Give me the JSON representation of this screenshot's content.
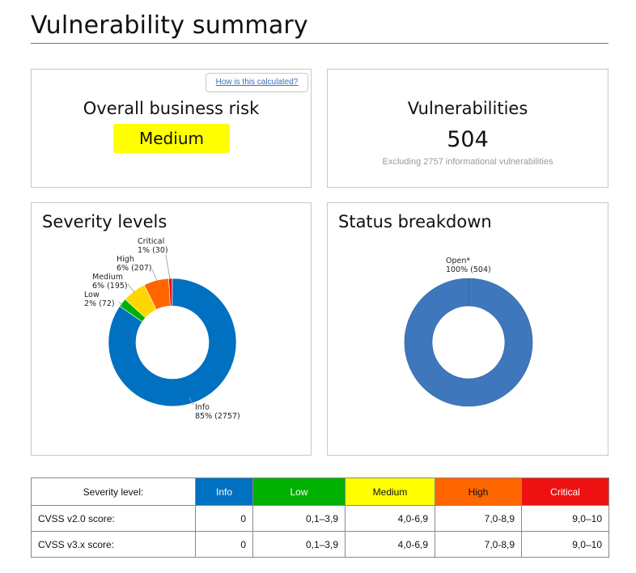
{
  "page": {
    "title": "Vulnerability summary"
  },
  "risk": {
    "heading": "Overall business risk",
    "level": "Medium",
    "link_label": "How is this calculated?",
    "badge_color": "#ffff00"
  },
  "vulnerabilities": {
    "heading": "Vulnerabilities",
    "count": "504",
    "note": "Excluding 2757 informational vulnerabilities"
  },
  "severity_chart": {
    "heading": "Severity levels"
  },
  "status_chart": {
    "heading": "Status breakdown"
  },
  "chart_data": [
    {
      "type": "pie",
      "donut": true,
      "title": "Severity levels",
      "slices": [
        {
          "name": "Info",
          "value": 2757,
          "label_pct": "85%",
          "label_count": "(2757)",
          "color": "#0070c0"
        },
        {
          "name": "Low",
          "value": 72,
          "label_pct": "2%",
          "label_count": "(72)",
          "color": "#00b000"
        },
        {
          "name": "Medium",
          "value": 195,
          "label_pct": "6%",
          "label_count": "(195)",
          "color": "#ffd700"
        },
        {
          "name": "High",
          "value": 207,
          "label_pct": "6%",
          "label_count": "(207)",
          "color": "#ff6600"
        },
        {
          "name": "Critical",
          "value": 30,
          "label_pct": "1%",
          "label_count": "(30)",
          "color": "#ee1111"
        }
      ]
    },
    {
      "type": "pie",
      "donut": true,
      "title": "Status breakdown",
      "slices": [
        {
          "name": "Open*",
          "value": 504,
          "label_pct": "100%",
          "label_count": "(504)",
          "color": "#3e77bb"
        }
      ]
    }
  ],
  "table": {
    "header_label": "Severity level:",
    "levels": [
      {
        "label": "Info",
        "color": "#0070c0",
        "text_color": "#ffffff"
      },
      {
        "label": "Low",
        "color": "#00b000",
        "text_color": "#ffffff"
      },
      {
        "label": "Medium",
        "color": "#ffff00",
        "text_color": "#111111"
      },
      {
        "label": "High",
        "color": "#ff6600",
        "text_color": "#111111"
      },
      {
        "label": "Critical",
        "color": "#ee1111",
        "text_color": "#ffffff"
      }
    ],
    "rows": [
      {
        "label": "CVSS v2.0 score:",
        "values": [
          "0",
          "0,1–3,9",
          "4,0-6,9",
          "7,0-8,9",
          "9,0–10"
        ]
      },
      {
        "label": "CVSS v3.x score:",
        "values": [
          "0",
          "0,1–3,9",
          "4,0-6,9",
          "7,0-8,9",
          "9,0–10"
        ]
      }
    ]
  }
}
